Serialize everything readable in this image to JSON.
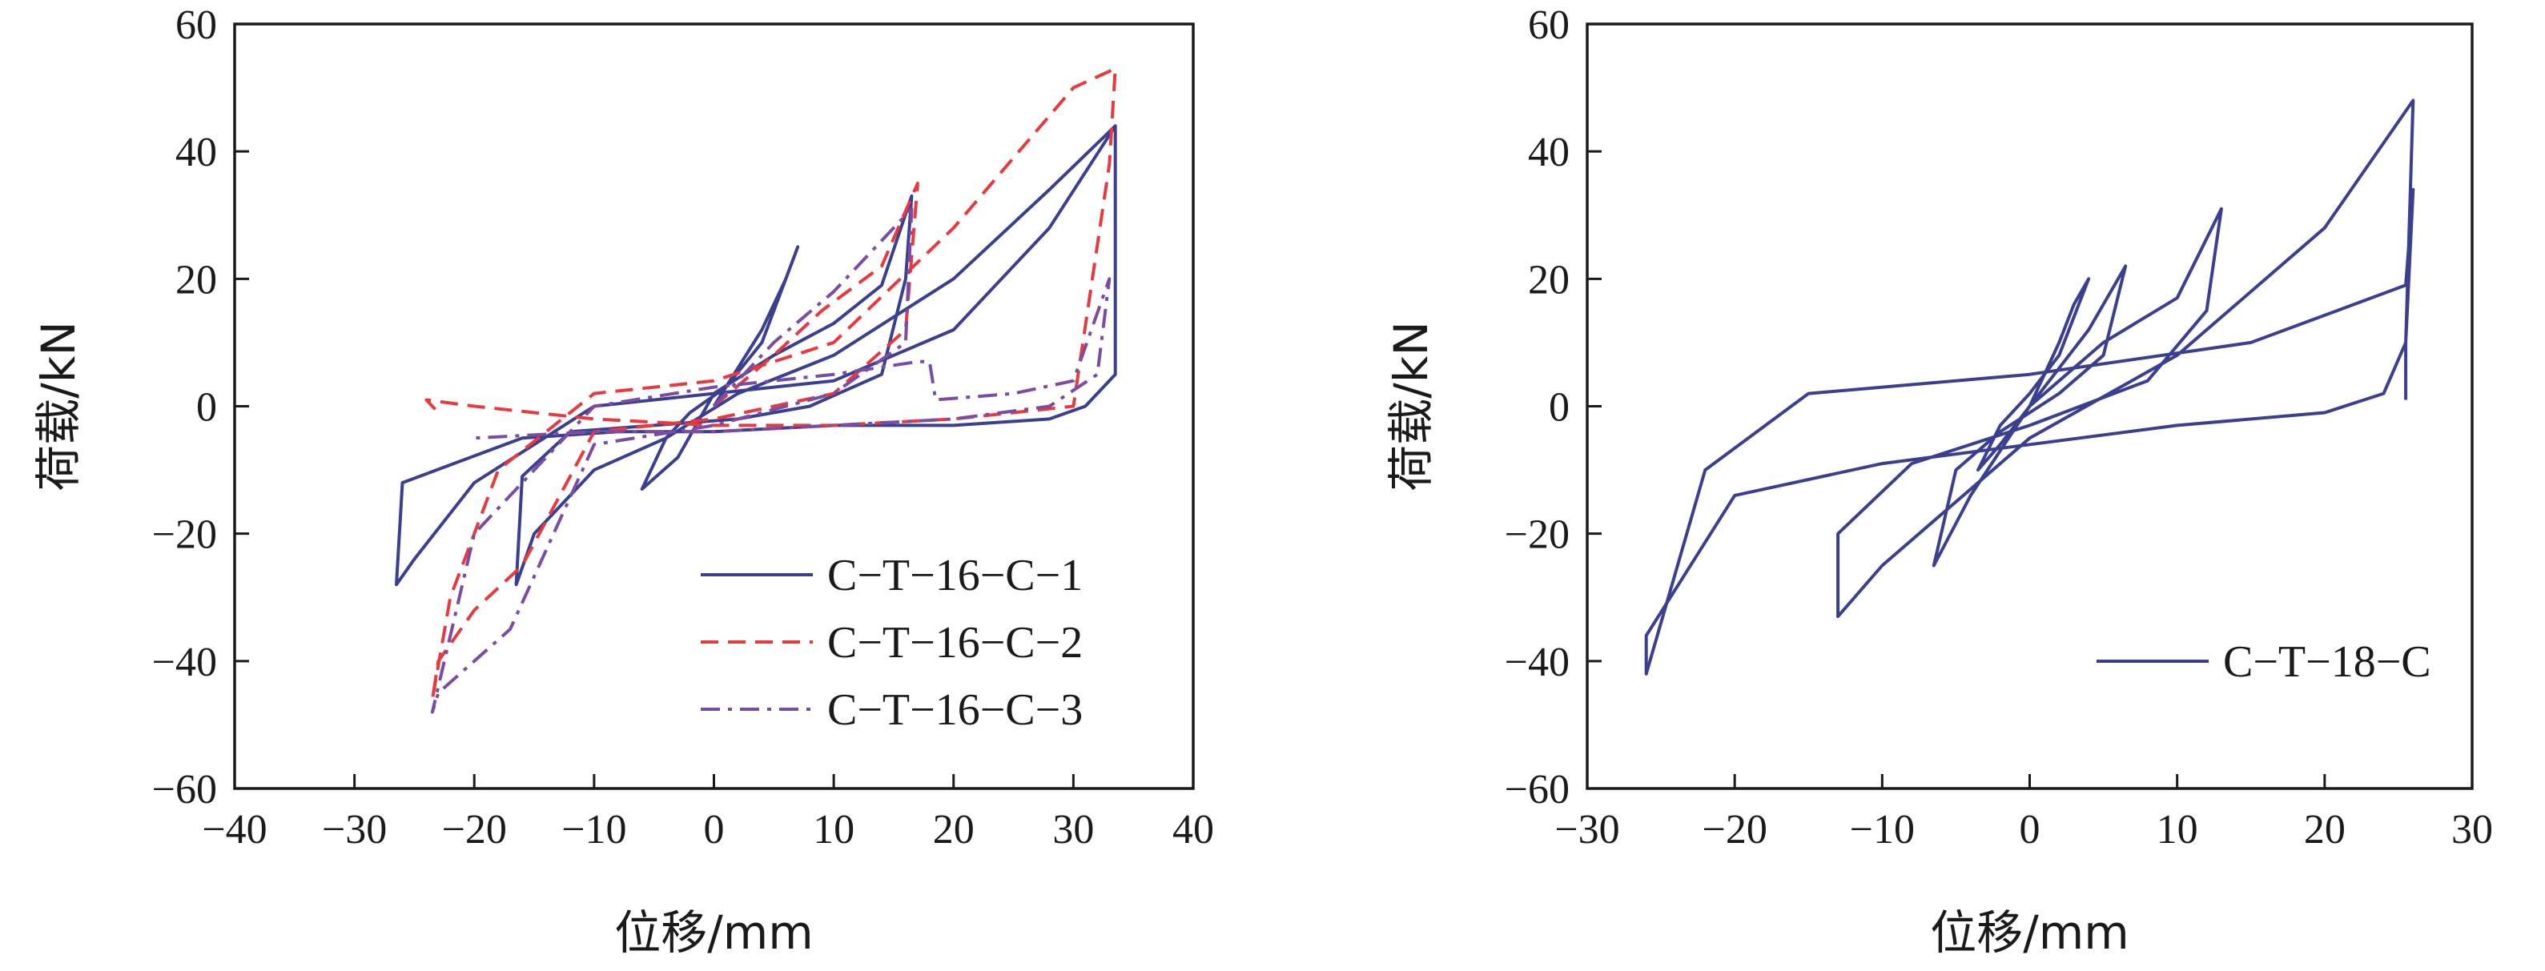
{
  "chart_data": [
    {
      "type": "line",
      "xlabel": "位移/mm",
      "ylabel": "荷载/kN",
      "xlim": [
        -40,
        40
      ],
      "ylim": [
        -60,
        60
      ],
      "xticks": [
        -40,
        -30,
        -20,
        -10,
        0,
        10,
        20,
        30,
        40
      ],
      "yticks": [
        -60,
        -40,
        -20,
        0,
        20,
        40,
        60
      ],
      "xtick_labels": [
        "−40",
        "−30",
        "−20",
        "−10",
        "0",
        "10",
        "20",
        "30",
        "40"
      ],
      "ytick_labels": [
        "−60",
        "−40",
        "−20",
        "0",
        "20",
        "40",
        "60"
      ],
      "legend_position": "lower-right",
      "grid": false,
      "series": [
        {
          "name": "C−T−16−C−1",
          "color": "#3b3f8f",
          "dash": "solid",
          "x": [
            0,
            4,
            6,
            7,
            4,
            1,
            -2,
            -4,
            -6,
            -3,
            0,
            5,
            10,
            14,
            16.5,
            16,
            14,
            8,
            2,
            -5,
            -12,
            -16,
            -16.5,
            -15,
            -10,
            -4,
            2,
            10,
            20,
            28,
            33.5,
            33.5,
            31,
            28,
            20,
            10,
            0,
            -8,
            -16,
            -26,
            -26.5,
            -25,
            -20,
            -10,
            0,
            10,
            20,
            28,
            33.5
          ],
          "y": [
            0,
            12,
            20,
            25,
            10,
            3,
            -1,
            -5,
            -13,
            -8,
            2,
            8,
            13,
            19,
            33,
            20,
            5,
            0,
            -2,
            -3,
            -4,
            -11,
            -28,
            -20,
            -10,
            -5,
            2,
            8,
            20,
            34,
            44,
            5,
            0,
            -2,
            -3,
            -3,
            -4,
            -4,
            -5,
            -12,
            -28,
            -24,
            -12,
            0,
            2,
            4,
            12,
            28,
            44
          ]
        },
        {
          "name": "C−T−16−C−2",
          "color": "#e8393f",
          "dash": "long",
          "x": [
            0,
            5,
            9,
            14,
            17,
            16,
            10,
            0,
            -10,
            -16,
            -20,
            -23,
            -23.5,
            -22,
            -18,
            -10,
            0,
            10,
            20,
            30,
            33.5,
            33,
            30,
            20,
            10,
            0,
            -10,
            -20,
            -24,
            -23
          ],
          "y": [
            0,
            8,
            15,
            22,
            35,
            12,
            2,
            -2,
            -4,
            -25,
            -32,
            -40,
            -46,
            -30,
            -10,
            2,
            4,
            10,
            28,
            50,
            53,
            38,
            0,
            -2,
            -3,
            -3,
            -2,
            0,
            1,
            -1
          ]
        },
        {
          "name": "C−T−16−C−3",
          "color": "#7a4ca3",
          "dash": "dashdot",
          "x": [
            0,
            5,
            10,
            16.5,
            16,
            10,
            0,
            -10,
            -17,
            -23,
            -23.5,
            -20,
            -10,
            0,
            10,
            17,
            18,
            18.5,
            25,
            30,
            33,
            32,
            28,
            20,
            10,
            0,
            -10,
            -20
          ],
          "y": [
            0,
            10,
            18,
            31,
            10,
            2,
            -3,
            -6,
            -35,
            -45,
            -48,
            -20,
            0,
            3,
            5,
            7,
            7,
            1,
            2,
            4,
            20,
            5,
            0,
            -2,
            -3,
            -4,
            -4,
            -5
          ]
        }
      ]
    },
    {
      "type": "line",
      "xlabel": "位移/mm",
      "ylabel": "荷载/kN",
      "xlim": [
        -30,
        30
      ],
      "ylim": [
        -60,
        60
      ],
      "xticks": [
        -30,
        -20,
        -10,
        0,
        10,
        20,
        30
      ],
      "yticks": [
        -60,
        -40,
        -20,
        0,
        20,
        40,
        60
      ],
      "xtick_labels": [
        "−30",
        "−20",
        "−10",
        "0",
        "10",
        "20",
        "30"
      ],
      "ytick_labels": [
        "−60",
        "−40",
        "−20",
        "0",
        "20",
        "40",
        "60"
      ],
      "legend_position": "lower-right",
      "grid": false,
      "series": [
        {
          "name": "C−T−18−C",
          "color": "#3b3f8f",
          "dash": "solid",
          "x": [
            0,
            2,
            3,
            4,
            2,
            0,
            -2,
            -3.5,
            -2,
            0,
            4,
            6.5,
            5,
            2,
            -2,
            -5,
            -6.5,
            -4,
            0,
            5,
            10,
            13,
            12,
            8,
            0,
            -8,
            -13,
            -13,
            -10,
            0,
            10,
            20,
            26,
            25.5,
            24,
            20,
            10,
            0,
            -10,
            -20,
            -26,
            -26,
            -22,
            -15,
            0,
            15,
            25.5,
            26,
            25.5,
            25.5
          ],
          "y": [
            0,
            10,
            16,
            20,
            8,
            2,
            -3,
            -10,
            -6,
            0,
            12,
            22,
            8,
            2,
            -4,
            -10,
            -25,
            -14,
            0,
            10,
            17,
            31,
            15,
            4,
            -3,
            -9,
            -20,
            -33,
            -25,
            -5,
            8,
            28,
            48,
            10,
            2,
            -1,
            -3,
            -6,
            -9,
            -14,
            -36,
            -42,
            -10,
            2,
            5,
            10,
            19,
            34,
            10,
            1
          ]
        }
      ]
    }
  ]
}
